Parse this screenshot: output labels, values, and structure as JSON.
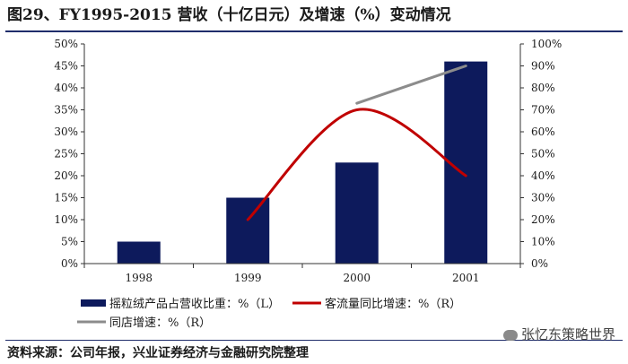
{
  "title": "图29、FY1995-2015 营收（十亿日元）及增速（%）变动情况",
  "source": "资料来源：公司年报，兴业证券经济与金融研究院整理",
  "watermark": "张忆东策略世界",
  "chart_data": {
    "type": "bar",
    "categories": [
      "1998",
      "1999",
      "2000",
      "2001"
    ],
    "left_axis": {
      "ticks": [
        "0%",
        "5%",
        "10%",
        "15%",
        "20%",
        "25%",
        "30%",
        "35%",
        "40%",
        "45%",
        "50%"
      ],
      "ylim": [
        0,
        50
      ]
    },
    "right_axis": {
      "ticks": [
        "0%",
        "10%",
        "20%",
        "30%",
        "40%",
        "50%",
        "60%",
        "70%",
        "80%",
        "90%",
        "100%"
      ],
      "ylim": [
        0,
        100
      ]
    },
    "series": [
      {
        "name": "摇粒绒产品占营收比重：%（L）",
        "type": "bar",
        "axis": "left",
        "color": "#0d1a5c",
        "values": [
          5,
          15,
          23,
          46
        ]
      },
      {
        "name": "客流量同比增速：%（R）",
        "type": "line",
        "smooth": true,
        "axis": "right",
        "color": "#c00000",
        "values": [
          null,
          20,
          70,
          40
        ]
      },
      {
        "name": "同店增速：%（R）",
        "type": "line",
        "axis": "right",
        "color": "#8c8c8c",
        "values": [
          null,
          null,
          73,
          90
        ]
      }
    ],
    "grid": false,
    "legend_position": "bottom"
  }
}
